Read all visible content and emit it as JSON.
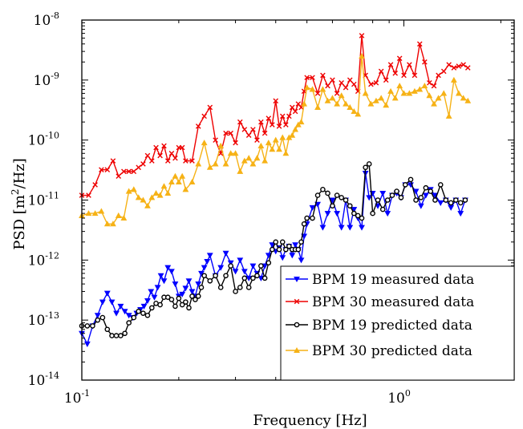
{
  "chart_data": {
    "type": "line",
    "xlabel": "Frequency [Hz]",
    "ylabel_main": "PSD [m",
    "ylabel_sup": "2",
    "ylabel_tail": "/Hz]",
    "x_scale": "log",
    "y_scale": "log",
    "xlim": [
      0.1,
      2.2
    ],
    "ylim": [
      1e-14,
      1e-08
    ],
    "grid": false,
    "legend_position": "bottom-right",
    "x_ticks": [
      {
        "value": 0.1,
        "base": "10",
        "exp": "-1"
      },
      {
        "value": 1,
        "base": "10",
        "exp": "0"
      }
    ],
    "y_ticks": [
      {
        "value": 1e-14,
        "base": "10",
        "exp": "-14"
      },
      {
        "value": 1e-13,
        "base": "10",
        "exp": "-13"
      },
      {
        "value": 1e-12,
        "base": "10",
        "exp": "-12"
      },
      {
        "value": 1e-11,
        "base": "10",
        "exp": "-11"
      },
      {
        "value": 1e-10,
        "base": "10",
        "exp": "-10"
      },
      {
        "value": 1e-09,
        "base": "10",
        "exp": "-9"
      },
      {
        "value": 1e-08,
        "base": "10",
        "exp": "-8"
      }
    ],
    "series": [
      {
        "name": "BPM 19 measured data",
        "color": "#0000ff",
        "marker": "triangle-down",
        "x": [
          0.1,
          0.104,
          0.108,
          0.112,
          0.116,
          0.12,
          0.124,
          0.128,
          0.132,
          0.136,
          0.14,
          0.144,
          0.148,
          0.152,
          0.156,
          0.16,
          0.164,
          0.168,
          0.172,
          0.176,
          0.18,
          0.185,
          0.19,
          0.195,
          0.2,
          0.205,
          0.21,
          0.215,
          0.22,
          0.225,
          0.23,
          0.235,
          0.24,
          0.245,
          0.25,
          0.26,
          0.27,
          0.28,
          0.29,
          0.3,
          0.31,
          0.32,
          0.33,
          0.34,
          0.35,
          0.36,
          0.37,
          0.38,
          0.39,
          0.4,
          0.41,
          0.42,
          0.43,
          0.44,
          0.45,
          0.46,
          0.47,
          0.48,
          0.49,
          0.5,
          0.52,
          0.54,
          0.56,
          0.58,
          0.6,
          0.62,
          0.64,
          0.66,
          0.68,
          0.7,
          0.72,
          0.74,
          0.76,
          0.78,
          0.8,
          0.83,
          0.86,
          0.89,
          0.92,
          0.95,
          0.98,
          1.01,
          1.05,
          1.09,
          1.13,
          1.17,
          1.21,
          1.25,
          1.3,
          1.35,
          1.4,
          1.45,
          1.5,
          1.55
        ],
        "y": [
          6e-14,
          4e-14,
          8e-14,
          1.2e-13,
          2e-13,
          2.8e-13,
          2e-13,
          1.3e-13,
          1.7e-13,
          1.4e-13,
          1.2e-13,
          1.1e-13,
          1.3e-13,
          1.5e-13,
          1.7e-13,
          2.1e-13,
          3e-13,
          2.4e-13,
          3.5e-13,
          5.5e-13,
          4.5e-13,
          7.5e-13,
          6.5e-13,
          4e-13,
          2.5e-13,
          2.7e-13,
          3.4e-13,
          4.5e-13,
          3e-13,
          2.5e-13,
          4e-13,
          6e-13,
          7.5e-13,
          9.5e-13,
          1.2e-12,
          5.5e-13,
          7.5e-13,
          1.3e-12,
          9e-13,
          6.5e-13,
          1e-12,
          6.5e-13,
          5e-13,
          8e-13,
          6e-13,
          5e-13,
          8e-13,
          1.2e-12,
          1.8e-12,
          1.4e-12,
          1.6e-12,
          1.1e-12,
          1.5e-12,
          1.7e-12,
          1.2e-12,
          1.8e-12,
          1.5e-12,
          1e-12,
          2.5e-12,
          4e-12,
          7.5e-12,
          8.5e-12,
          3.5e-12,
          6e-12,
          1e-11,
          6e-12,
          3.5e-12,
          1e-11,
          3.5e-12,
          7e-12,
          5e-12,
          3.5e-12,
          2.8e-11,
          1.1e-11,
          1.3e-11,
          8e-12,
          1.3e-11,
          6e-12,
          1.2e-11,
          1.3e-11,
          1.1e-11,
          1.8e-11,
          1.8e-11,
          1.4e-11,
          8e-12,
          1.2e-11,
          1.5e-11,
          1.2e-11,
          9e-12,
          1e-11,
          7.5e-12,
          1e-11,
          6e-12,
          1e-11
        ]
      },
      {
        "name": "BPM 30 measured data",
        "color": "#ee0000",
        "marker": "x",
        "x": [
          0.1,
          0.105,
          0.11,
          0.115,
          0.12,
          0.125,
          0.13,
          0.135,
          0.14,
          0.145,
          0.15,
          0.155,
          0.16,
          0.165,
          0.17,
          0.175,
          0.18,
          0.185,
          0.19,
          0.195,
          0.2,
          0.205,
          0.21,
          0.22,
          0.23,
          0.24,
          0.25,
          0.26,
          0.27,
          0.28,
          0.29,
          0.3,
          0.31,
          0.32,
          0.33,
          0.34,
          0.35,
          0.36,
          0.37,
          0.38,
          0.39,
          0.4,
          0.41,
          0.42,
          0.43,
          0.44,
          0.45,
          0.46,
          0.47,
          0.48,
          0.49,
          0.5,
          0.52,
          0.54,
          0.56,
          0.58,
          0.6,
          0.62,
          0.64,
          0.66,
          0.68,
          0.7,
          0.72,
          0.74,
          0.76,
          0.79,
          0.82,
          0.85,
          0.88,
          0.91,
          0.94,
          0.97,
          1.0,
          1.04,
          1.08,
          1.12,
          1.16,
          1.2,
          1.24,
          1.28,
          1.33,
          1.38,
          1.43,
          1.48,
          1.53,
          1.58
        ],
        "y": [
          1.2e-11,
          1.2e-11,
          1.8e-11,
          3.2e-11,
          3.2e-11,
          4.5e-11,
          2.5e-11,
          3e-11,
          3e-11,
          3e-11,
          3.5e-11,
          4e-11,
          5.5e-11,
          4.5e-11,
          7.5e-11,
          5.5e-11,
          8e-11,
          4.5e-11,
          6e-11,
          5e-11,
          7.5e-11,
          7.5e-11,
          4.5e-11,
          4.5e-11,
          1.7e-10,
          2.5e-10,
          3.5e-10,
          1e-10,
          6e-11,
          1.3e-10,
          1.3e-10,
          9e-11,
          2e-10,
          1.5e-10,
          1.2e-10,
          1.5e-10,
          1e-10,
          2e-10,
          1.3e-10,
          2.3e-10,
          1.8e-10,
          4.5e-10,
          1.7e-10,
          2.5e-10,
          1.8e-10,
          2.5e-10,
          3.5e-10,
          3e-10,
          4e-10,
          3.5e-10,
          6.5e-10,
          1.1e-09,
          1.1e-09,
          6e-10,
          1.2e-09,
          8e-10,
          1e-09,
          6e-10,
          9e-10,
          7.5e-10,
          1e-09,
          8.5e-10,
          6.5e-10,
          5.5e-09,
          1.2e-09,
          8.5e-10,
          9e-10,
          1.4e-09,
          1e-09,
          1.8e-09,
          1.3e-09,
          2.3e-09,
          1.2e-09,
          1.8e-09,
          1.2e-09,
          4e-09,
          2e-09,
          9e-10,
          8e-10,
          1.2e-09,
          1.4e-09,
          1.8e-09,
          1.6e-09,
          1.7e-09,
          1.8e-09,
          1.6e-09
        ]
      },
      {
        "name": "BPM 19 predicted data",
        "color": "#000000",
        "marker": "circle",
        "x": [
          0.1,
          0.104,
          0.108,
          0.112,
          0.116,
          0.12,
          0.124,
          0.128,
          0.132,
          0.136,
          0.14,
          0.145,
          0.15,
          0.155,
          0.16,
          0.165,
          0.17,
          0.175,
          0.18,
          0.185,
          0.19,
          0.195,
          0.2,
          0.205,
          0.21,
          0.215,
          0.22,
          0.225,
          0.23,
          0.235,
          0.24,
          0.25,
          0.26,
          0.27,
          0.28,
          0.29,
          0.3,
          0.31,
          0.32,
          0.33,
          0.34,
          0.35,
          0.36,
          0.37,
          0.38,
          0.39,
          0.4,
          0.41,
          0.42,
          0.43,
          0.44,
          0.45,
          0.46,
          0.47,
          0.48,
          0.49,
          0.5,
          0.52,
          0.54,
          0.56,
          0.58,
          0.6,
          0.62,
          0.64,
          0.66,
          0.68,
          0.7,
          0.72,
          0.74,
          0.76,
          0.78,
          0.8,
          0.83,
          0.86,
          0.89,
          0.92,
          0.95,
          0.98,
          1.01,
          1.05,
          1.09,
          1.13,
          1.17,
          1.21,
          1.25,
          1.3,
          1.35,
          1.4,
          1.45,
          1.5,
          1.55
        ],
        "y": [
          8e-14,
          8e-14,
          8e-14,
          1e-13,
          1.1e-13,
          7e-14,
          5.5e-14,
          5.5e-14,
          5.5e-14,
          6e-14,
          9e-14,
          1.1e-13,
          1.4e-13,
          1.3e-13,
          1.2e-13,
          1.6e-13,
          1.9e-13,
          1.8e-13,
          2.4e-13,
          2.4e-13,
          2.2e-13,
          1.7e-13,
          2.3e-13,
          1.8e-13,
          2e-13,
          1.6e-13,
          2.5e-13,
          2.2e-13,
          2.5e-13,
          3.5e-13,
          5.5e-13,
          4.5e-13,
          5.5e-13,
          3.5e-13,
          5.5e-13,
          8e-13,
          3e-13,
          3.5e-13,
          5e-13,
          3.5e-13,
          5e-13,
          5.5e-13,
          8e-13,
          5e-13,
          9e-13,
          1.5e-12,
          2e-12,
          1.5e-12,
          2e-12,
          1.5e-12,
          1.7e-12,
          1.5e-12,
          1.5e-12,
          1.5e-12,
          2e-12,
          4e-12,
          5e-12,
          5e-12,
          1.2e-11,
          1.5e-11,
          1.3e-11,
          8e-12,
          1.2e-11,
          1.1e-11,
          1e-11,
          8e-12,
          6e-12,
          5.5e-12,
          5e-12,
          3.5e-11,
          4e-11,
          6e-12,
          1e-11,
          7e-12,
          1e-11,
          1.2e-11,
          1.4e-11,
          1.1e-11,
          1.8e-11,
          2.2e-11,
          1e-11,
          1.1e-11,
          1.6e-11,
          1.4e-11,
          1e-11,
          1.8e-11,
          1e-11,
          9e-12,
          1e-11,
          9e-12,
          1e-11
        ]
      },
      {
        "name": "BPM 30 predicted data",
        "color": "#f6b216",
        "marker": "triangle-up",
        "x": [
          0.1,
          0.105,
          0.11,
          0.115,
          0.12,
          0.125,
          0.13,
          0.135,
          0.14,
          0.145,
          0.15,
          0.155,
          0.16,
          0.165,
          0.17,
          0.175,
          0.18,
          0.185,
          0.19,
          0.195,
          0.2,
          0.205,
          0.21,
          0.22,
          0.23,
          0.24,
          0.25,
          0.26,
          0.27,
          0.28,
          0.29,
          0.3,
          0.31,
          0.32,
          0.33,
          0.34,
          0.35,
          0.36,
          0.37,
          0.38,
          0.39,
          0.4,
          0.41,
          0.42,
          0.43,
          0.44,
          0.45,
          0.46,
          0.47,
          0.48,
          0.49,
          0.5,
          0.52,
          0.54,
          0.56,
          0.58,
          0.6,
          0.62,
          0.64,
          0.66,
          0.68,
          0.7,
          0.72,
          0.74,
          0.76,
          0.79,
          0.82,
          0.85,
          0.88,
          0.91,
          0.94,
          0.97,
          1.0,
          1.04,
          1.08,
          1.12,
          1.16,
          1.2,
          1.24,
          1.28,
          1.33,
          1.38,
          1.43,
          1.48,
          1.53,
          1.58
        ],
        "y": [
          5.5e-12,
          6e-12,
          6e-12,
          6.5e-12,
          4e-12,
          4e-12,
          5.5e-12,
          5e-12,
          1.4e-11,
          1.5e-11,
          1.1e-11,
          1e-11,
          8e-12,
          1.1e-11,
          1.3e-11,
          1.2e-11,
          1.7e-11,
          1.3e-11,
          2e-11,
          2.5e-11,
          2e-11,
          2.5e-11,
          1.5e-11,
          2e-11,
          4e-11,
          9e-11,
          3.5e-11,
          4e-11,
          8e-11,
          4e-11,
          6e-11,
          6e-11,
          3e-11,
          4.5e-11,
          5e-11,
          4e-11,
          5e-11,
          8e-11,
          4.5e-11,
          9e-11,
          7e-11,
          1e-10,
          7e-11,
          1.1e-10,
          6e-11,
          1.1e-10,
          1.2e-10,
          1.5e-10,
          1.8e-10,
          2e-10,
          4e-10,
          7.5e-10,
          7e-10,
          3.5e-10,
          7e-10,
          4.5e-10,
          5e-10,
          4e-10,
          5.5e-10,
          4e-10,
          3.5e-10,
          3e-10,
          2.7e-10,
          2.5e-09,
          6e-10,
          4e-10,
          4.5e-10,
          5e-10,
          3.8e-10,
          6.5e-10,
          5e-10,
          8e-10,
          6e-10,
          6e-10,
          6.5e-10,
          7e-10,
          8e-10,
          5.5e-10,
          4e-10,
          5e-10,
          6e-10,
          2.5e-10,
          1e-09,
          6e-10,
          5e-10,
          4.5e-10
        ]
      }
    ]
  }
}
